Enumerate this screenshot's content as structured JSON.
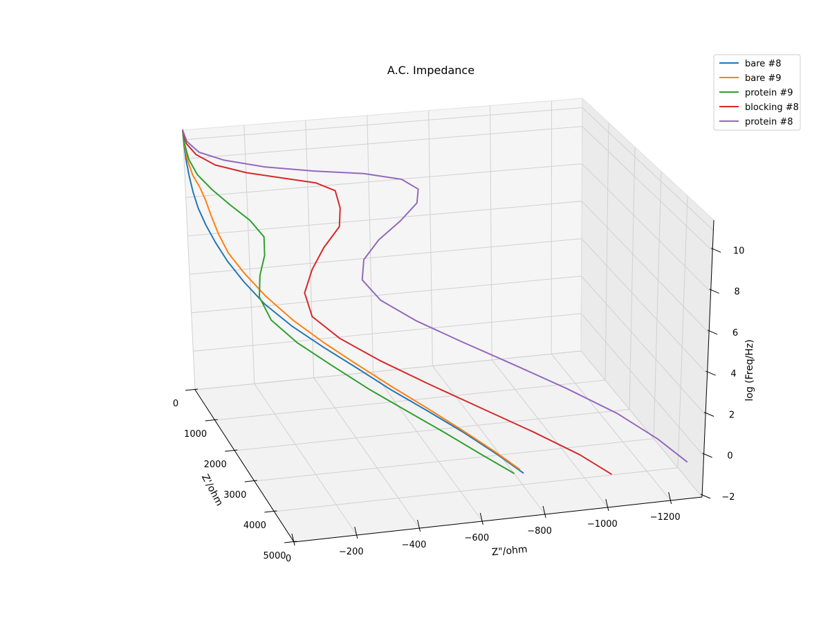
{
  "chart_data": {
    "type": "line3d",
    "title": "A.C. Impedance",
    "xlabel": "Z'/ohm",
    "ylabel": "Z\"/ohm",
    "zlabel": "log (Freq/Hz)",
    "xlim": [
      0,
      5000
    ],
    "ylim": [
      0,
      -1300
    ],
    "zlim": [
      -2,
      11.5
    ],
    "xticks": [
      0,
      1000,
      2000,
      3000,
      4000,
      5000
    ],
    "xtick_labels": [
      "0",
      "1000",
      "2000",
      "3000",
      "4000",
      "5000"
    ],
    "yticks": [
      0,
      -200,
      -400,
      -600,
      -800,
      -1000,
      -1200
    ],
    "ytick_labels": [
      "0",
      "−200",
      "−400",
      "−600",
      "−800",
      "−1000",
      "−1200"
    ],
    "zticks": [
      -2,
      0,
      2,
      4,
      6,
      8,
      10
    ],
    "ztick_labels": [
      "−2",
      "0",
      "2",
      "4",
      "6",
      "8",
      "10"
    ],
    "legend_position": "top-right",
    "series": [
      {
        "name": "bare #8",
        "color": "#1f77b4",
        "points": [
          [
            0,
            0,
            11.5
          ],
          [
            12,
            -2,
            10.8
          ],
          [
            28,
            -6,
            10.0
          ],
          [
            55,
            -13,
            9.2
          ],
          [
            90,
            -22,
            8.4
          ],
          [
            140,
            -35,
            7.6
          ],
          [
            210,
            -55,
            6.8
          ],
          [
            310,
            -80,
            6.0
          ],
          [
            450,
            -110,
            5.2
          ],
          [
            660,
            -150,
            4.4
          ],
          [
            950,
            -200,
            3.6
          ],
          [
            1300,
            -265,
            2.9
          ],
          [
            1700,
            -340,
            2.3
          ],
          [
            2100,
            -420,
            1.7
          ],
          [
            2550,
            -500,
            1.1
          ],
          [
            3000,
            -580,
            0.6
          ],
          [
            3500,
            -660,
            0.1
          ],
          [
            4000,
            -730,
            -0.4
          ],
          [
            4400,
            -780,
            -0.8
          ]
        ]
      },
      {
        "name": "bare #9",
        "color": "#ff7f0e",
        "points": [
          [
            0,
            0,
            11.5
          ],
          [
            12,
            -3,
            10.8
          ],
          [
            30,
            -10,
            10.0
          ],
          [
            55,
            -25,
            9.2
          ],
          [
            90,
            -45,
            8.6
          ],
          [
            130,
            -60,
            8.0
          ],
          [
            200,
            -75,
            7.2
          ],
          [
            300,
            -92,
            6.4
          ],
          [
            440,
            -115,
            5.6
          ],
          [
            650,
            -155,
            4.8
          ],
          [
            940,
            -205,
            4.0
          ],
          [
            1300,
            -270,
            3.2
          ],
          [
            1700,
            -345,
            2.5
          ],
          [
            2100,
            -420,
            1.9
          ],
          [
            2550,
            -500,
            1.3
          ],
          [
            3000,
            -575,
            0.8
          ],
          [
            3500,
            -650,
            0.3
          ],
          [
            4000,
            -720,
            -0.2
          ],
          [
            4400,
            -770,
            -0.6
          ]
        ]
      },
      {
        "name": "protein #9",
        "color": "#2ca02c",
        "points": [
          [
            0,
            0,
            11.5
          ],
          [
            10,
            -4,
            10.8
          ],
          [
            25,
            -15,
            10.0
          ],
          [
            45,
            -40,
            9.2
          ],
          [
            75,
            -85,
            8.4
          ],
          [
            120,
            -140,
            7.6
          ],
          [
            180,
            -200,
            6.8
          ],
          [
            260,
            -240,
            6.0
          ],
          [
            360,
            -235,
            5.2
          ],
          [
            500,
            -210,
            4.4
          ],
          [
            700,
            -195,
            3.6
          ],
          [
            980,
            -215,
            2.8
          ],
          [
            1350,
            -275,
            2.1
          ],
          [
            1800,
            -355,
            1.5
          ],
          [
            2300,
            -440,
            0.9
          ],
          [
            2800,
            -525,
            0.4
          ],
          [
            3300,
            -610,
            -0.1
          ],
          [
            3800,
            -690,
            -0.6
          ],
          [
            4250,
            -760,
            -1.0
          ]
        ]
      },
      {
        "name": "blocking #8",
        "color": "#d62728",
        "points": [
          [
            0,
            0,
            11.5
          ],
          [
            8,
            -10,
            10.8
          ],
          [
            18,
            -40,
            10.2
          ],
          [
            32,
            -100,
            9.6
          ],
          [
            55,
            -200,
            9.1
          ],
          [
            90,
            -320,
            8.7
          ],
          [
            140,
            -420,
            8.4
          ],
          [
            205,
            -480,
            8.0
          ],
          [
            290,
            -490,
            7.2
          ],
          [
            400,
            -480,
            6.4
          ],
          [
            540,
            -420,
            5.6
          ],
          [
            720,
            -370,
            4.8
          ],
          [
            960,
            -330,
            4.0
          ],
          [
            1250,
            -335,
            3.2
          ],
          [
            1600,
            -400,
            2.5
          ],
          [
            2000,
            -500,
            1.8
          ],
          [
            2450,
            -620,
            1.1
          ],
          [
            2950,
            -750,
            0.4
          ],
          [
            3450,
            -880,
            -0.3
          ],
          [
            3950,
            -990,
            -0.9
          ],
          [
            4350,
            -1060,
            -1.4
          ]
        ]
      },
      {
        "name": "protein #8",
        "color": "#9467bd",
        "points": [
          [
            0,
            0,
            11.5
          ],
          [
            5,
            -12,
            10.9
          ],
          [
            12,
            -50,
            10.3
          ],
          [
            22,
            -130,
            9.8
          ],
          [
            38,
            -260,
            9.3
          ],
          [
            60,
            -420,
            8.9
          ],
          [
            95,
            -580,
            8.6
          ],
          [
            140,
            -700,
            8.2
          ],
          [
            200,
            -750,
            7.7
          ],
          [
            280,
            -740,
            7.1
          ],
          [
            380,
            -680,
            6.4
          ],
          [
            510,
            -600,
            5.7
          ],
          [
            680,
            -540,
            5.0
          ],
          [
            900,
            -520,
            4.3
          ],
          [
            1180,
            -560,
            3.6
          ],
          [
            1520,
            -650,
            2.9
          ],
          [
            1920,
            -770,
            2.2
          ],
          [
            2380,
            -900,
            1.5
          ],
          [
            2880,
            -1030,
            0.8
          ],
          [
            3400,
            -1150,
            0.1
          ],
          [
            3900,
            -1240,
            -0.6
          ],
          [
            4350,
            -1300,
            -1.2
          ]
        ]
      }
    ]
  }
}
